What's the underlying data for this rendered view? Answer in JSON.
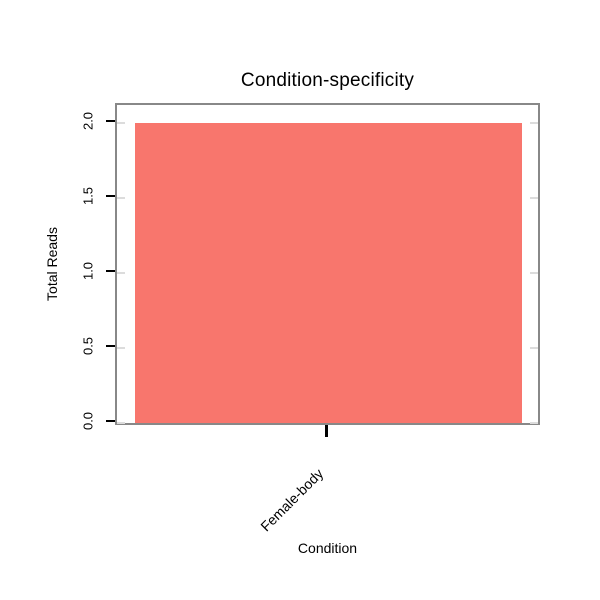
{
  "chart": {
    "title": "Condition-specificity",
    "xlabel": "Condition",
    "ylabel": "Total Reads"
  },
  "chart_data": {
    "type": "bar",
    "title": "Condition-specificity",
    "xlabel": "Condition",
    "ylabel": "Total Reads",
    "categories": [
      "Female-body"
    ],
    "values": [
      2
    ],
    "ylim": [
      0,
      2
    ],
    "ytick_labels": [
      "0.0",
      "0.5",
      "1.0",
      "1.5",
      "2.0"
    ],
    "ytick_values": [
      0,
      0.5,
      1,
      1.5,
      2
    ],
    "bar_color": "#F8766D",
    "frame_color": "#888888",
    "grid": false,
    "legend_position": "none"
  }
}
